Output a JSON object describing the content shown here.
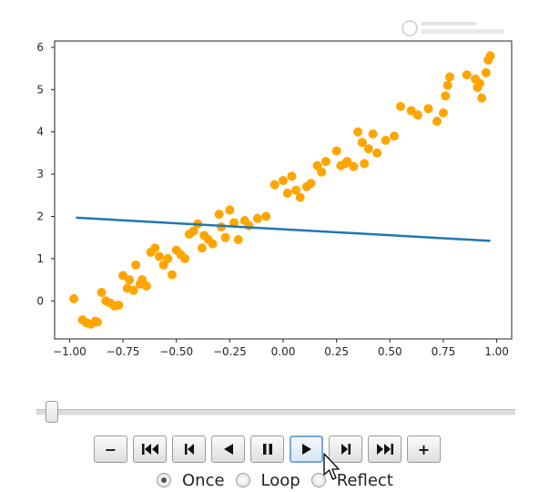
{
  "chart_data": {
    "type": "scatter",
    "title": "",
    "xlabel": "",
    "ylabel": "",
    "xlim": [
      -1.07,
      1.07
    ],
    "ylim": [
      -0.9,
      6.15
    ],
    "xticks": [
      "−1.00",
      "−0.75",
      "−0.50",
      "−0.25",
      "0.00",
      "0.25",
      "0.50",
      "0.75",
      "1.00"
    ],
    "xtick_values": [
      -1.0,
      -0.75,
      -0.5,
      -0.25,
      0.0,
      0.25,
      0.5,
      0.75,
      1.0
    ],
    "yticks": [
      "0",
      "1",
      "2",
      "3",
      "4",
      "5",
      "6"
    ],
    "ytick_values": [
      0,
      1,
      2,
      3,
      4,
      5,
      6
    ],
    "grid": false,
    "series": [
      {
        "kind": "scatter",
        "color": "#ffa500",
        "x": [
          -0.98,
          -0.94,
          -0.92,
          -0.9,
          -0.88,
          -0.87,
          -0.85,
          -0.83,
          -0.81,
          -0.79,
          -0.77,
          -0.75,
          -0.73,
          -0.72,
          -0.7,
          -0.69,
          -0.67,
          -0.66,
          -0.64,
          -0.62,
          -0.6,
          -0.58,
          -0.56,
          -0.54,
          -0.52,
          -0.5,
          -0.48,
          -0.46,
          -0.44,
          -0.42,
          -0.4,
          -0.38,
          -0.37,
          -0.35,
          -0.33,
          -0.3,
          -0.29,
          -0.27,
          -0.25,
          -0.23,
          -0.21,
          -0.18,
          -0.16,
          -0.12,
          -0.08,
          -0.04,
          0.0,
          0.02,
          0.04,
          0.06,
          0.08,
          0.11,
          0.13,
          0.16,
          0.18,
          0.2,
          0.25,
          0.27,
          0.29,
          0.3,
          0.33,
          0.35,
          0.37,
          0.38,
          0.4,
          0.42,
          0.44,
          0.48,
          0.52,
          0.55,
          0.6,
          0.63,
          0.68,
          0.72,
          0.75,
          0.76,
          0.77,
          0.78,
          0.86,
          0.9,
          0.91,
          0.92,
          0.93,
          0.95,
          0.96,
          0.97
        ],
        "y": [
          0.05,
          -0.45,
          -0.52,
          -0.55,
          -0.48,
          -0.5,
          0.2,
          0.0,
          -0.05,
          -0.12,
          -0.1,
          0.6,
          0.3,
          0.5,
          0.25,
          0.85,
          0.4,
          0.5,
          0.35,
          1.15,
          1.25,
          1.05,
          0.85,
          1.0,
          0.62,
          1.2,
          1.1,
          1.0,
          1.58,
          1.65,
          1.82,
          1.25,
          1.55,
          1.45,
          1.35,
          2.05,
          1.75,
          1.5,
          2.15,
          1.85,
          1.45,
          1.9,
          1.78,
          1.95,
          2.0,
          2.75,
          2.85,
          2.55,
          2.95,
          2.62,
          2.45,
          2.7,
          2.78,
          3.2,
          3.05,
          3.3,
          3.55,
          3.2,
          3.25,
          3.3,
          3.18,
          4.0,
          3.75,
          3.25,
          3.6,
          3.95,
          3.5,
          3.8,
          3.9,
          4.6,
          4.5,
          4.4,
          4.55,
          4.25,
          4.45,
          4.85,
          5.1,
          5.3,
          5.35,
          5.25,
          5.05,
          5.15,
          4.8,
          5.4,
          5.7,
          5.8
        ]
      },
      {
        "kind": "line",
        "color": "#1f77b4",
        "x": [
          -0.97,
          0.97
        ],
        "y": [
          1.97,
          1.42
        ]
      }
    ]
  },
  "slider": {
    "value_fraction": 0.02
  },
  "controls": [
    {
      "name": "decrease-speed-button",
      "icon": "minus-icon",
      "label": "−"
    },
    {
      "name": "first-frame-button",
      "icon": "skip-to-start-icon",
      "label": ""
    },
    {
      "name": "step-back-button",
      "icon": "step-back-icon",
      "label": ""
    },
    {
      "name": "play-reverse-button",
      "icon": "play-reverse-icon",
      "label": ""
    },
    {
      "name": "pause-button",
      "icon": "pause-icon",
      "label": ""
    },
    {
      "name": "play-forward-button",
      "icon": "play-icon",
      "label": ""
    },
    {
      "name": "step-forward-button",
      "icon": "step-forward-icon",
      "label": ""
    },
    {
      "name": "last-frame-button",
      "icon": "skip-to-end-icon",
      "label": ""
    },
    {
      "name": "increase-speed-button",
      "icon": "plus-icon",
      "label": "+"
    }
  ],
  "active_control": "play-forward-button",
  "modes": {
    "selected": "Once",
    "options": [
      "Once",
      "Loop",
      "Reflect"
    ]
  }
}
